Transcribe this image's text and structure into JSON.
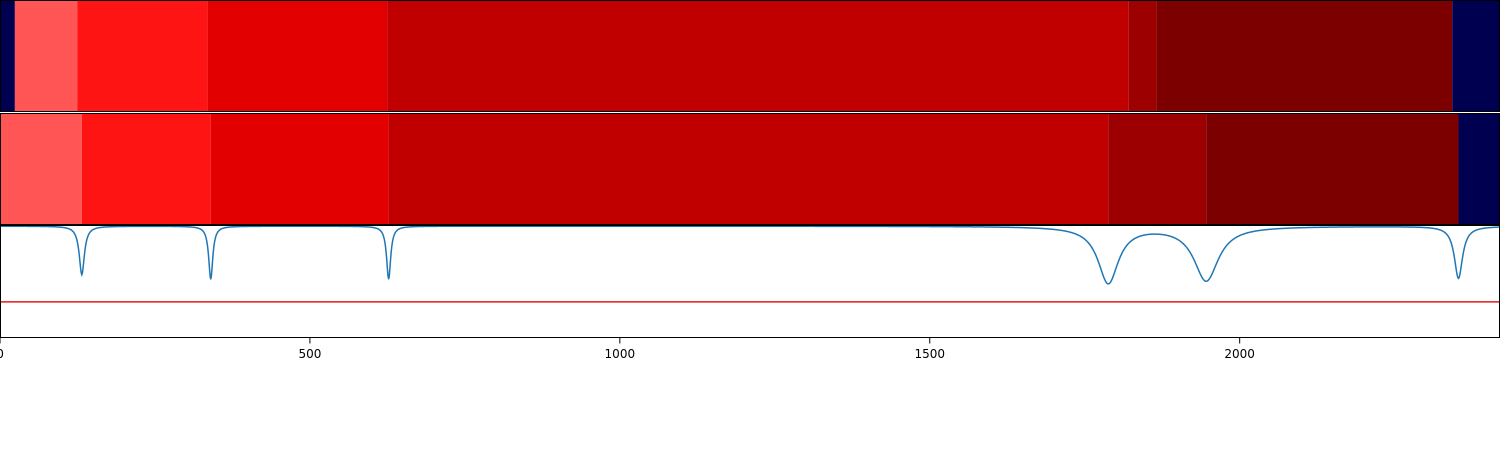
{
  "chart_data": {
    "type": "heatmap",
    "x_range": [
      0,
      2420
    ],
    "x_ticks": [
      0,
      500,
      1000,
      1500,
      2000
    ],
    "grid": false,
    "colors": {
      "edge": "#000050",
      "lightest_red": "#ff5555",
      "bright_red": "#ff1414",
      "red": "#e30000",
      "dark_red": "#c00000",
      "darker_red": "#9c0000",
      "darkest_red": "#7d0000",
      "signal": "#1f77b4",
      "threshold": "#e41a1c"
    },
    "track_1_segments": [
      {
        "start": 0,
        "end": 24,
        "color": "#000050"
      },
      {
        "start": 24,
        "end": 125,
        "color": "#ff5555"
      },
      {
        "start": 125,
        "end": 335,
        "color": "#ff1414"
      },
      {
        "start": 335,
        "end": 625,
        "color": "#e30000"
      },
      {
        "start": 625,
        "end": 1821,
        "color": "#c00000"
      },
      {
        "start": 1821,
        "end": 1866,
        "color": "#9c0000"
      },
      {
        "start": 1866,
        "end": 2343,
        "color": "#7d0000"
      },
      {
        "start": 2343,
        "end": 2420,
        "color": "#000050"
      }
    ],
    "track_2_segments": [
      {
        "start": 0,
        "end": 132,
        "color": "#ff5555"
      },
      {
        "start": 132,
        "end": 340,
        "color": "#ff1414"
      },
      {
        "start": 340,
        "end": 627,
        "color": "#e30000"
      },
      {
        "start": 627,
        "end": 1788,
        "color": "#c00000"
      },
      {
        "start": 1788,
        "end": 1946,
        "color": "#9c0000"
      },
      {
        "start": 1946,
        "end": 2353,
        "color": "#7d0000"
      },
      {
        "start": 2353,
        "end": 2420,
        "color": "#000050"
      }
    ],
    "signal": {
      "y_range": [
        -1,
        0
      ],
      "baseline": -0.01,
      "threshold": -0.68,
      "dips": [
        {
          "center": 132,
          "depth": 0.43,
          "width": 5
        },
        {
          "center": 340,
          "depth": 0.47,
          "width": 4
        },
        {
          "center": 627,
          "depth": 0.47,
          "width": 4
        },
        {
          "center": 1788,
          "depth": 0.5,
          "width": 20
        },
        {
          "center": 1946,
          "depth": 0.48,
          "width": 24
        },
        {
          "center": 2353,
          "depth": 0.46,
          "width": 8
        }
      ]
    }
  }
}
